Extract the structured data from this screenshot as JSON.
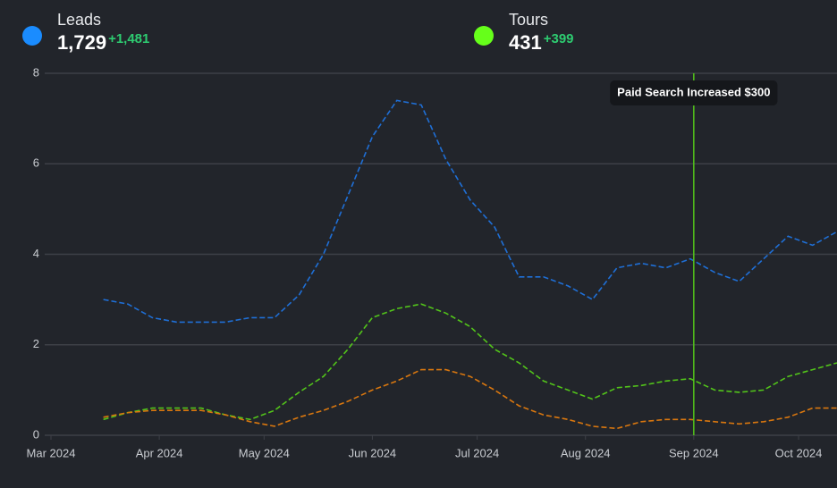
{
  "chart_data": {
    "type": "line",
    "legend_items": [
      {
        "name": "Leads",
        "total": "1,729",
        "change": "+1,481",
        "color": "#1a8cff"
      },
      {
        "name": "Tours",
        "total": "431",
        "change": "+399",
        "color": "#66ff1a"
      }
    ],
    "change_color": "#2ecc71",
    "x": [
      15,
      22,
      29,
      36,
      43,
      50,
      57,
      64,
      71,
      78,
      85,
      92,
      99,
      106,
      113,
      120,
      127,
      134,
      141,
      148,
      155,
      162,
      169,
      176,
      183,
      190,
      197,
      204,
      211,
      218,
      225
    ],
    "series": [
      {
        "color": "#1f6fd6",
        "values": [
          3.0,
          2.9,
          2.6,
          2.5,
          2.5,
          2.5,
          2.6,
          2.6,
          3.1,
          4.0,
          5.3,
          6.6,
          7.4,
          7.3,
          6.1,
          5.2,
          4.6,
          3.5,
          3.5,
          3.3,
          3.0,
          3.7,
          3.8,
          3.7,
          3.9,
          3.6,
          3.4,
          3.9,
          4.4,
          4.2,
          4.5
        ]
      },
      {
        "color": "#52c41a",
        "values": [
          0.35,
          0.5,
          0.6,
          0.6,
          0.6,
          0.45,
          0.35,
          0.55,
          0.95,
          1.3,
          1.9,
          2.6,
          2.8,
          2.9,
          2.7,
          2.4,
          1.9,
          1.6,
          1.2,
          1.0,
          0.8,
          1.05,
          1.1,
          1.2,
          1.25,
          1.0,
          0.95,
          1.0,
          1.3,
          1.45,
          1.6
        ]
      },
      {
        "color": "#d9770f",
        "values": [
          0.4,
          0.5,
          0.55,
          0.55,
          0.55,
          0.45,
          0.3,
          0.2,
          0.4,
          0.55,
          0.75,
          1.0,
          1.2,
          1.45,
          1.45,
          1.3,
          1.0,
          0.65,
          0.45,
          0.35,
          0.2,
          0.15,
          0.3,
          0.35,
          0.35,
          0.3,
          0.25,
          0.3,
          0.4,
          0.6,
          0.6
        ]
      }
    ],
    "xlim": [
      0,
      225
    ],
    "xticks": [
      {
        "value": 0,
        "label": "Mar 2024"
      },
      {
        "value": 31,
        "label": "Apr 2024"
      },
      {
        "value": 61,
        "label": "May 2024"
      },
      {
        "value": 92,
        "label": "Jun 2024"
      },
      {
        "value": 122,
        "label": "Jul 2024"
      },
      {
        "value": 153,
        "label": "Aug 2024"
      },
      {
        "value": 184,
        "label": "Sep 2024"
      },
      {
        "value": 214,
        "label": "Oct 2024"
      }
    ],
    "ylim": [
      0,
      8
    ],
    "yticks": [
      0,
      2,
      4,
      6,
      8
    ],
    "grid": true,
    "annotations": [
      {
        "x": 184,
        "text": "Paid Search Increased $300",
        "color": "#52c41a"
      }
    ]
  }
}
